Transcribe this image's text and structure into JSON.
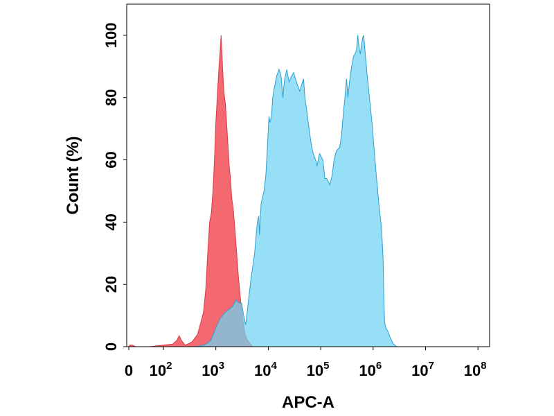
{
  "chart_data": {
    "type": "area",
    "title": "",
    "xlabel": "APC-A",
    "ylabel": "Count  (%)",
    "x_scale": "log",
    "xlim": [
      0,
      100000000
    ],
    "ylim": [
      0,
      110
    ],
    "y_ticks": [
      0,
      20,
      40,
      60,
      80,
      100
    ],
    "x_ticks": [
      {
        "value": 0,
        "base": "0",
        "exp": ""
      },
      {
        "value": 100,
        "base": "10",
        "exp": "2"
      },
      {
        "value": 1000,
        "base": "10",
        "exp": "3"
      },
      {
        "value": 10000,
        "base": "10",
        "exp": "4"
      },
      {
        "value": 100000,
        "base": "10",
        "exp": "5"
      },
      {
        "value": 1000000,
        "base": "10",
        "exp": "6"
      },
      {
        "value": 10000000,
        "base": "10",
        "exp": "7"
      },
      {
        "value": 100000000,
        "base": "10",
        "exp": "8"
      }
    ],
    "grid": false,
    "legend": "none",
    "series": [
      {
        "color": "#f2545b",
        "edge": "#d83a44",
        "points": [
          [
            0,
            0
          ],
          [
            3,
            0.5
          ],
          [
            10,
            0.5
          ],
          [
            20,
            0
          ],
          [
            60,
            0
          ],
          [
            100,
            0.5
          ],
          [
            150,
            0.8
          ],
          [
            180,
            2
          ],
          [
            200,
            3.5
          ],
          [
            220,
            2
          ],
          [
            260,
            0.5
          ],
          [
            350,
            1.5
          ],
          [
            450,
            4
          ],
          [
            520,
            8
          ],
          [
            580,
            11
          ],
          [
            640,
            18
          ],
          [
            700,
            30
          ],
          [
            760,
            40
          ],
          [
            820,
            43
          ],
          [
            880,
            50
          ],
          [
            940,
            60
          ],
          [
            1000,
            72
          ],
          [
            1080,
            82
          ],
          [
            1150,
            90
          ],
          [
            1220,
            96
          ],
          [
            1260,
            100
          ],
          [
            1290,
            96
          ],
          [
            1340,
            90
          ],
          [
            1420,
            82
          ],
          [
            1520,
            78
          ],
          [
            1600,
            72
          ],
          [
            1700,
            65
          ],
          [
            1800,
            58
          ],
          [
            1900,
            54
          ],
          [
            2000,
            48
          ],
          [
            2150,
            44
          ],
          [
            2300,
            38
          ],
          [
            2500,
            30
          ],
          [
            2700,
            22
          ],
          [
            3000,
            14
          ],
          [
            3300,
            8
          ],
          [
            3600,
            4
          ],
          [
            4000,
            2
          ],
          [
            4500,
            1
          ],
          [
            5000,
            0
          ]
        ]
      },
      {
        "color": "#6fd3f3",
        "edge": "#2a9fd0",
        "points": [
          [
            400,
            0
          ],
          [
            600,
            0.5
          ],
          [
            800,
            2
          ],
          [
            1000,
            6
          ],
          [
            1200,
            9
          ],
          [
            1500,
            11
          ],
          [
            1800,
            12
          ],
          [
            2100,
            13
          ],
          [
            2400,
            15
          ],
          [
            2800,
            14
          ],
          [
            3100,
            14
          ],
          [
            3400,
            10
          ],
          [
            3700,
            7
          ],
          [
            3900,
            10
          ],
          [
            4200,
            15
          ],
          [
            4700,
            22
          ],
          [
            5500,
            30
          ],
          [
            5800,
            35
          ],
          [
            6200,
            40
          ],
          [
            6600,
            42
          ],
          [
            6800,
            36
          ],
          [
            7300,
            46
          ],
          [
            8300,
            50
          ],
          [
            9000,
            55
          ],
          [
            9700,
            65
          ],
          [
            10300,
            74
          ],
          [
            10800,
            72
          ],
          [
            11500,
            74
          ],
          [
            12200,
            80
          ],
          [
            13000,
            83
          ],
          [
            14500,
            87
          ],
          [
            16000,
            89
          ],
          [
            17500,
            87
          ],
          [
            19000,
            80
          ],
          [
            20500,
            86
          ],
          [
            22500,
            89
          ],
          [
            25000,
            85
          ],
          [
            28000,
            87
          ],
          [
            30500,
            88
          ],
          [
            33000,
            86
          ],
          [
            36000,
            84
          ],
          [
            40000,
            82
          ],
          [
            43000,
            84
          ],
          [
            47000,
            86
          ],
          [
            50000,
            80
          ],
          [
            54000,
            76
          ],
          [
            60000,
            70
          ],
          [
            66000,
            65
          ],
          [
            72000,
            62
          ],
          [
            80000,
            60
          ],
          [
            85000,
            58
          ],
          [
            95000,
            62
          ],
          [
            110000,
            60
          ],
          [
            120000,
            54
          ],
          [
            130000,
            54
          ],
          [
            140000,
            53
          ],
          [
            150000,
            52
          ],
          [
            165000,
            55
          ],
          [
            180000,
            60
          ],
          [
            200000,
            63
          ],
          [
            230000,
            64
          ],
          [
            250000,
            68
          ],
          [
            270000,
            75
          ],
          [
            290000,
            80
          ],
          [
            310000,
            86
          ],
          [
            330000,
            80
          ],
          [
            360000,
            86
          ],
          [
            390000,
            90
          ],
          [
            420000,
            93
          ],
          [
            450000,
            94
          ],
          [
            480000,
            95
          ],
          [
            510000,
            100
          ],
          [
            540000,
            96
          ],
          [
            570000,
            94
          ],
          [
            600000,
            97
          ],
          [
            630000,
            99
          ],
          [
            660000,
            100
          ],
          [
            700000,
            95
          ],
          [
            760000,
            88
          ],
          [
            850000,
            80
          ],
          [
            950000,
            72
          ],
          [
            1050000,
            63
          ],
          [
            1150000,
            55
          ],
          [
            1300000,
            45
          ],
          [
            1450000,
            38
          ],
          [
            1550000,
            28
          ],
          [
            1600000,
            15
          ],
          [
            1650000,
            8
          ],
          [
            1750000,
            6
          ],
          [
            1900000,
            5
          ],
          [
            2100000,
            3
          ],
          [
            2400000,
            1
          ],
          [
            2800000,
            0
          ]
        ]
      }
    ]
  }
}
